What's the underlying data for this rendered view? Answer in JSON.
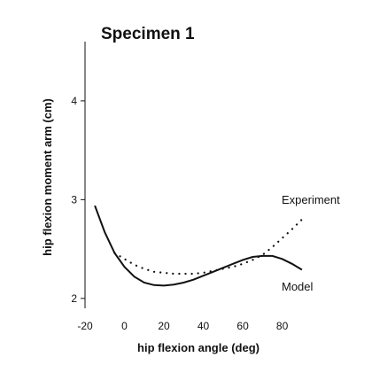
{
  "chart_data": {
    "type": "line",
    "title": "Specimen 1",
    "xlabel": "hip flexion angle (deg)",
    "ylabel": "hip flexion moment arm (cm)",
    "xlim": [
      -20,
      95
    ],
    "ylim": [
      1.9,
      4.6
    ],
    "x_ticks": [
      -20,
      0,
      20,
      40,
      60,
      80
    ],
    "y_ticks": [
      2,
      3,
      4
    ],
    "grid": false,
    "legend": "none",
    "annotations": [
      "Experiment",
      "Model"
    ],
    "series": [
      {
        "name": "Model",
        "style": "solid",
        "x": [
          -15,
          -10,
          -5,
          0,
          5,
          10,
          15,
          20,
          25,
          30,
          35,
          40,
          45,
          50,
          55,
          60,
          65,
          70,
          75,
          80,
          85,
          90
        ],
        "y": [
          2.94,
          2.67,
          2.46,
          2.32,
          2.22,
          2.16,
          2.135,
          2.13,
          2.14,
          2.16,
          2.19,
          2.23,
          2.27,
          2.31,
          2.35,
          2.39,
          2.42,
          2.43,
          2.43,
          2.4,
          2.35,
          2.29
        ]
      },
      {
        "name": "Experiment",
        "style": "dotted",
        "x": [
          -5,
          0,
          5,
          10,
          15,
          20,
          25,
          30,
          35,
          40,
          45,
          50,
          55,
          60,
          65,
          70,
          75,
          80,
          85,
          90
        ],
        "y": [
          2.46,
          2.4,
          2.34,
          2.3,
          2.27,
          2.26,
          2.25,
          2.25,
          2.25,
          2.26,
          2.28,
          2.3,
          2.32,
          2.35,
          2.39,
          2.44,
          2.52,
          2.61,
          2.7,
          2.8
        ]
      }
    ]
  }
}
